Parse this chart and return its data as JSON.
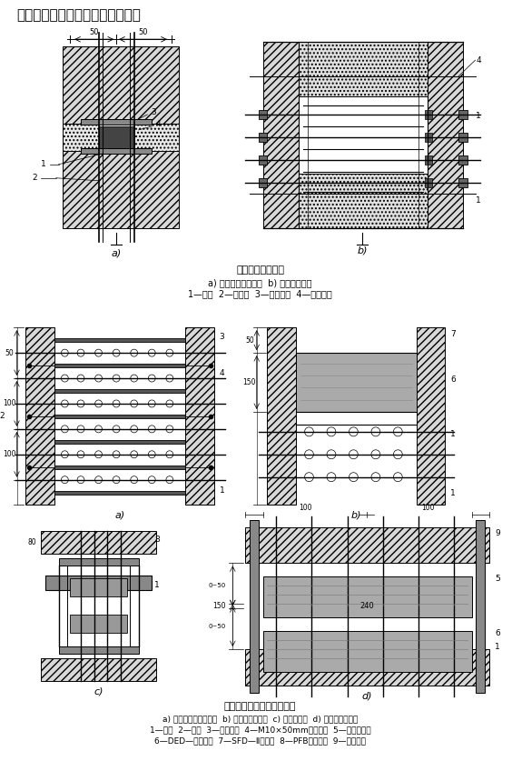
{
  "title": "电缆穿墙防水、防火保护处理方法",
  "section1_title": "电缆穿墙防水做法",
  "section1_sub": "a) 单根电缆引入室内  b) 适用于外防水",
  "section1_legend": "1—电缆  2—保护管  3—前青麻丝  4—沥蜡注膏",
  "section2_title": "电缆穿墙孔洞阻火封堵做法",
  "section2_sub": "a) 耐火隔板及矿棉封堵  b) 逆面型堵料封堵  c) 防火包封堵  d) 穿墙保护管封堵",
  "section2_legend1": "1—电缆  2—矿棉  3—耐火隔板  4—M10×50mm膨胀螺栓  5—穿墙保护管",
  "section2_legend2": "6—DED—直型堵料  7—SFD—Ⅱ型堵料  8—PFB型防火包  9—水泥砂浆",
  "bg_color": "#ffffff"
}
